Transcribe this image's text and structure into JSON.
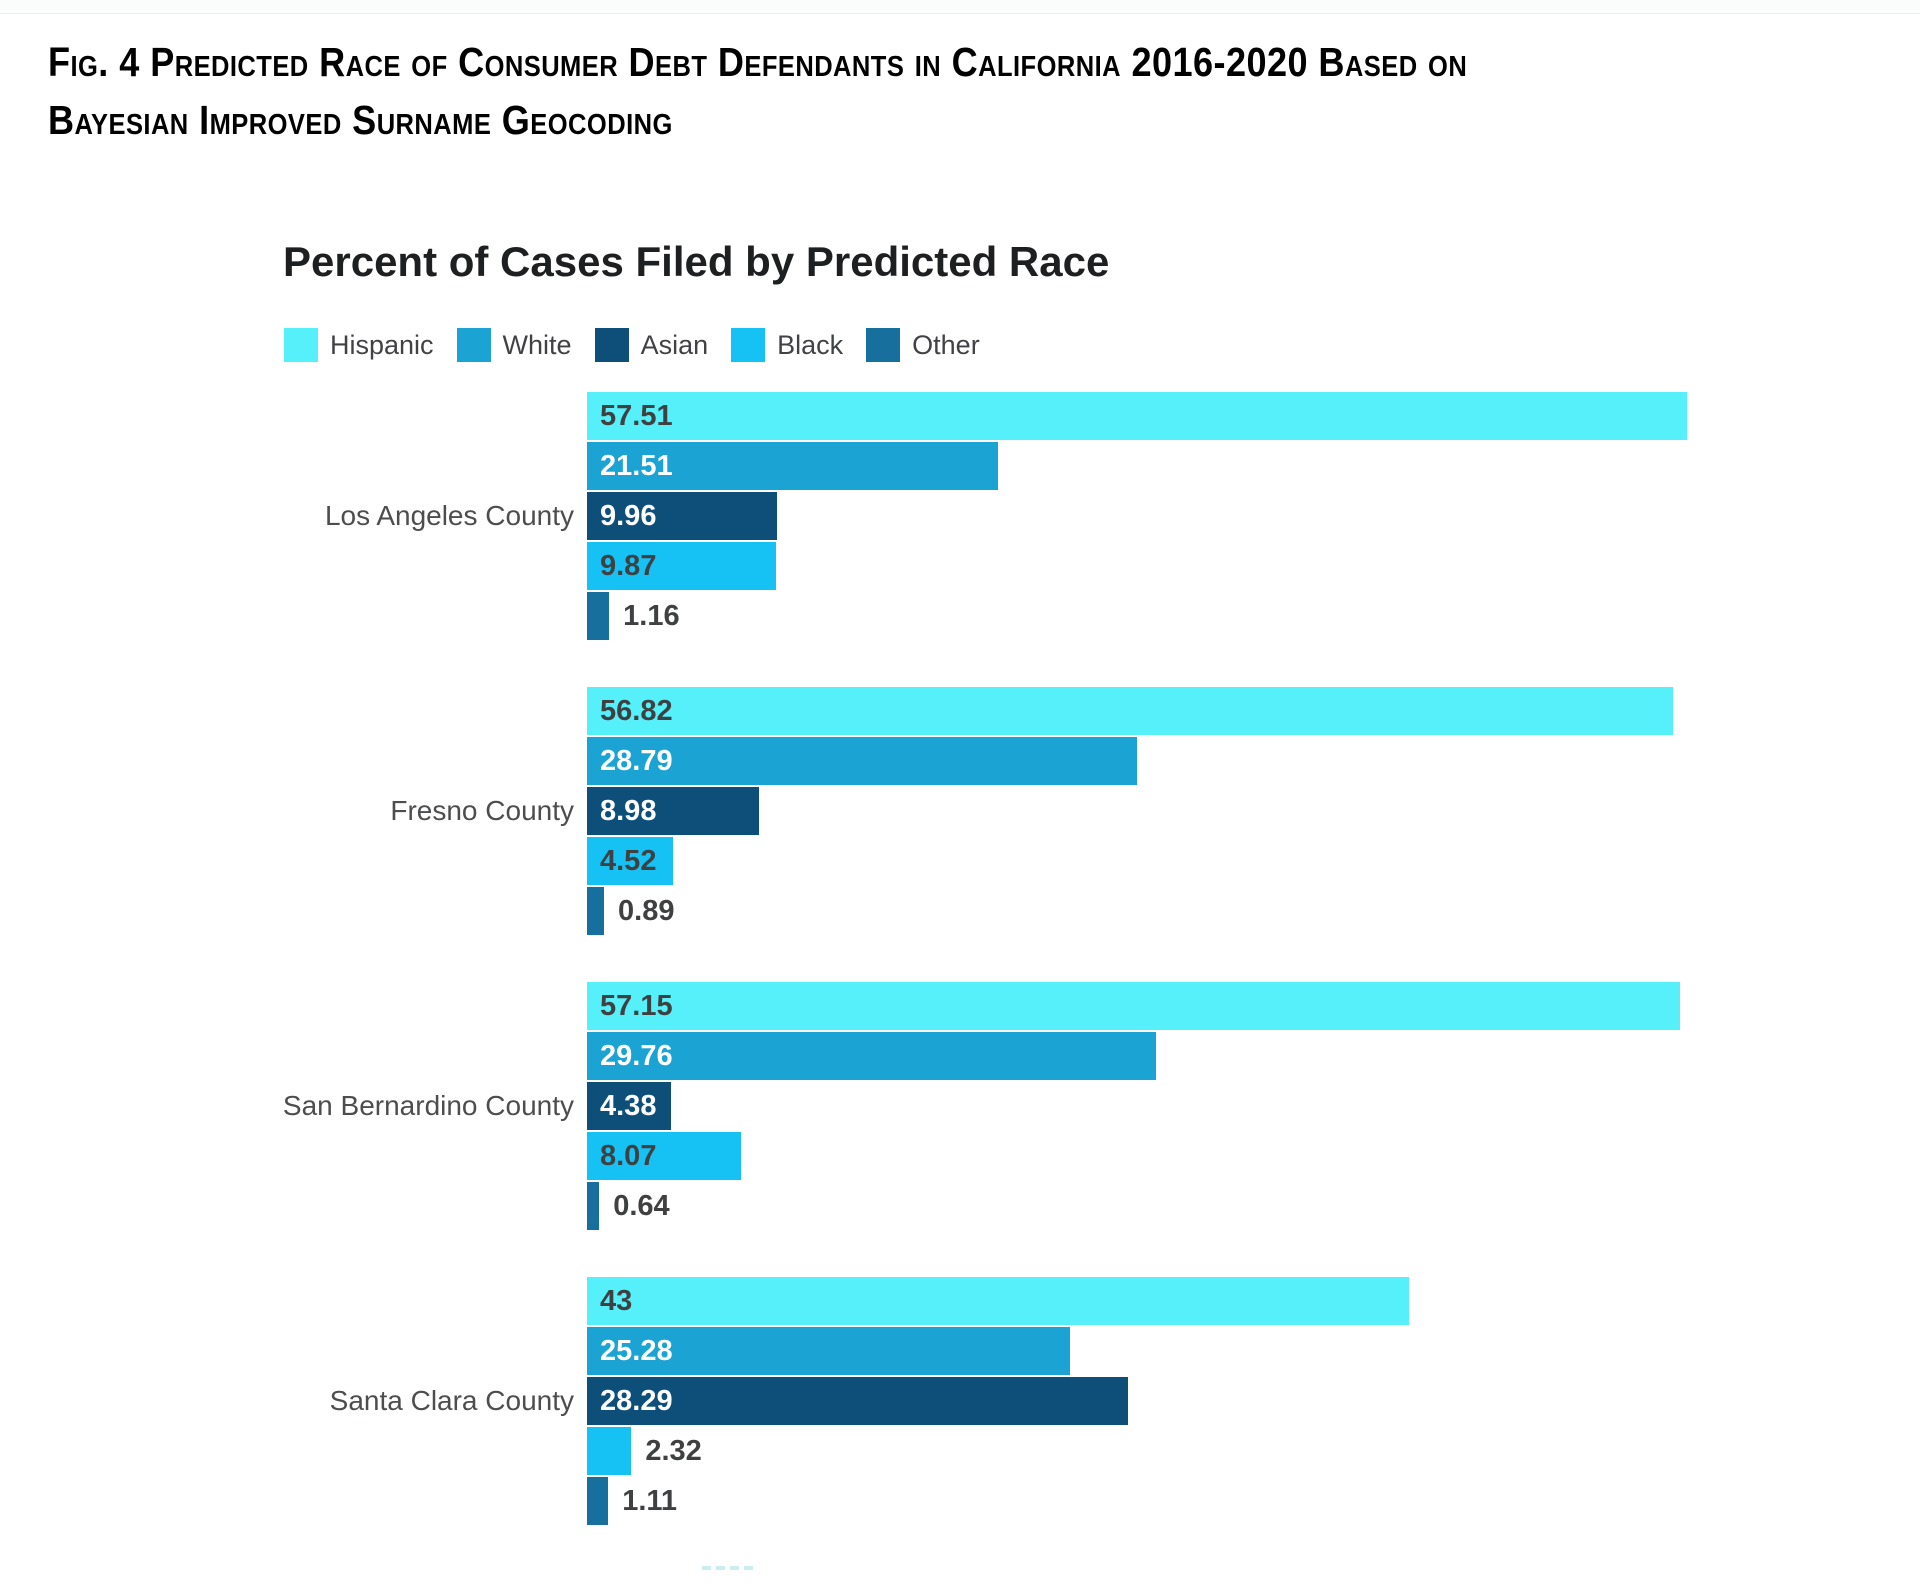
{
  "figure_title": {
    "text": "Fig. 4 Predicted Race of Consumer Debt Defendants in California 2016-2020 Based on Bayesian Improved Surname Geocoding",
    "lines": [
      "Fig. 4 Predicted Race of Consumer Debt Defendants in California 2016-2020 Based on",
      "Bayesian Improved Surname Geocoding"
    ]
  },
  "chart_data": {
    "type": "bar",
    "orientation": "horizontal",
    "title": "Percent of Cases Filed by Predicted Race",
    "legend_position": "top",
    "grid": false,
    "axes_visible": false,
    "value_labels": true,
    "xlim": [
      0,
      60
    ],
    "categories": [
      "Los Angeles County",
      "Fresno County",
      "San Bernardino County",
      "Santa Clara County"
    ],
    "series": [
      {
        "name": "Hispanic",
        "color": "#55F0FA",
        "label_color": "#3F4042",
        "values": [
          57.51,
          56.82,
          57.15,
          43
        ]
      },
      {
        "name": "White",
        "color": "#1BA3D3",
        "label_color": "#FFFFFF",
        "values": [
          21.51,
          28.79,
          29.76,
          25.28
        ]
      },
      {
        "name": "Asian",
        "color": "#0E4F79",
        "label_color": "#FFFFFF",
        "values": [
          9.96,
          8.98,
          4.38,
          28.29
        ]
      },
      {
        "name": "Black",
        "color": "#16C2F4",
        "label_color": "#3F4042",
        "values": [
          9.87,
          4.52,
          8.07,
          2.32
        ]
      },
      {
        "name": "Other",
        "color": "#176F9E",
        "label_color": "#3F4042",
        "values": [
          1.16,
          0.89,
          0.64,
          1.11
        ]
      }
    ],
    "category_label_color": "#4C4D4F",
    "legend_label_color": "#414245",
    "title_color": "#1E1F21"
  }
}
